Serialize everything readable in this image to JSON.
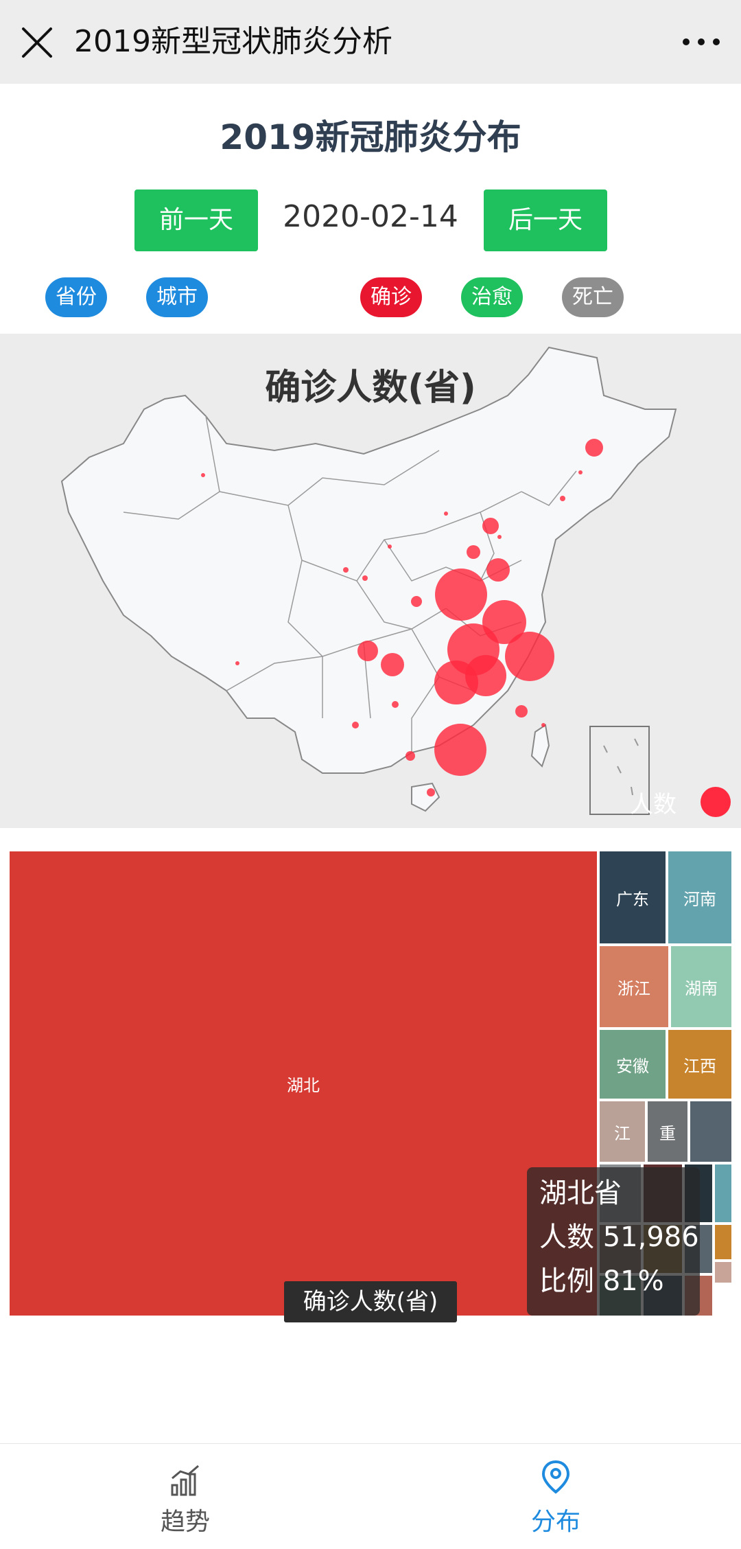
{
  "navbar": {
    "title": "2019新型冠状肺炎分析"
  },
  "page": {
    "title": "2019新冠肺炎分布"
  },
  "controls": {
    "prev_label": "前一天",
    "date": "2020-02-14",
    "next_label": "后一天"
  },
  "filters": {
    "scope": [
      {
        "label": "省份",
        "color": "#1f8bdf"
      },
      {
        "label": "城市",
        "color": "#1f8bdf"
      }
    ],
    "metric": [
      {
        "label": "确诊",
        "color": "#e8162f"
      },
      {
        "label": "治愈",
        "color": "#1fc05e"
      },
      {
        "label": "死亡",
        "color": "#8e8e8e"
      }
    ]
  },
  "map": {
    "title": "确诊人数(省)",
    "legend_label": "人数",
    "bubble_color": "#ff2a3f"
  },
  "treemap": {
    "cells": [
      {
        "label": "湖北",
        "color": "#d63a33"
      },
      {
        "label": "广东",
        "color": "#2e4454"
      },
      {
        "label": "河南",
        "color": "#62a3ad"
      },
      {
        "label": "浙江",
        "color": "#d57f62"
      },
      {
        "label": "湖南",
        "color": "#92c9b1"
      },
      {
        "label": "安徽",
        "color": "#6fa287"
      },
      {
        "label": "江西",
        "color": "#c7842c"
      },
      {
        "label": "江",
        "color": "#b9a197"
      },
      {
        "label": "重",
        "color": "#6e7173"
      },
      {
        "label": "",
        "color": "#55646f"
      }
    ],
    "caption": "确诊人数(省)"
  },
  "tooltip": {
    "name": "湖北省",
    "count_label": "人数",
    "count_value": "51,986",
    "ratio_label": "比例",
    "ratio_value": "81%"
  },
  "tabbar": {
    "items": [
      {
        "label": "趋势",
        "active": false,
        "color": "#555555"
      },
      {
        "label": "分布",
        "active": true,
        "color": "#1f8bdf"
      }
    ]
  }
}
